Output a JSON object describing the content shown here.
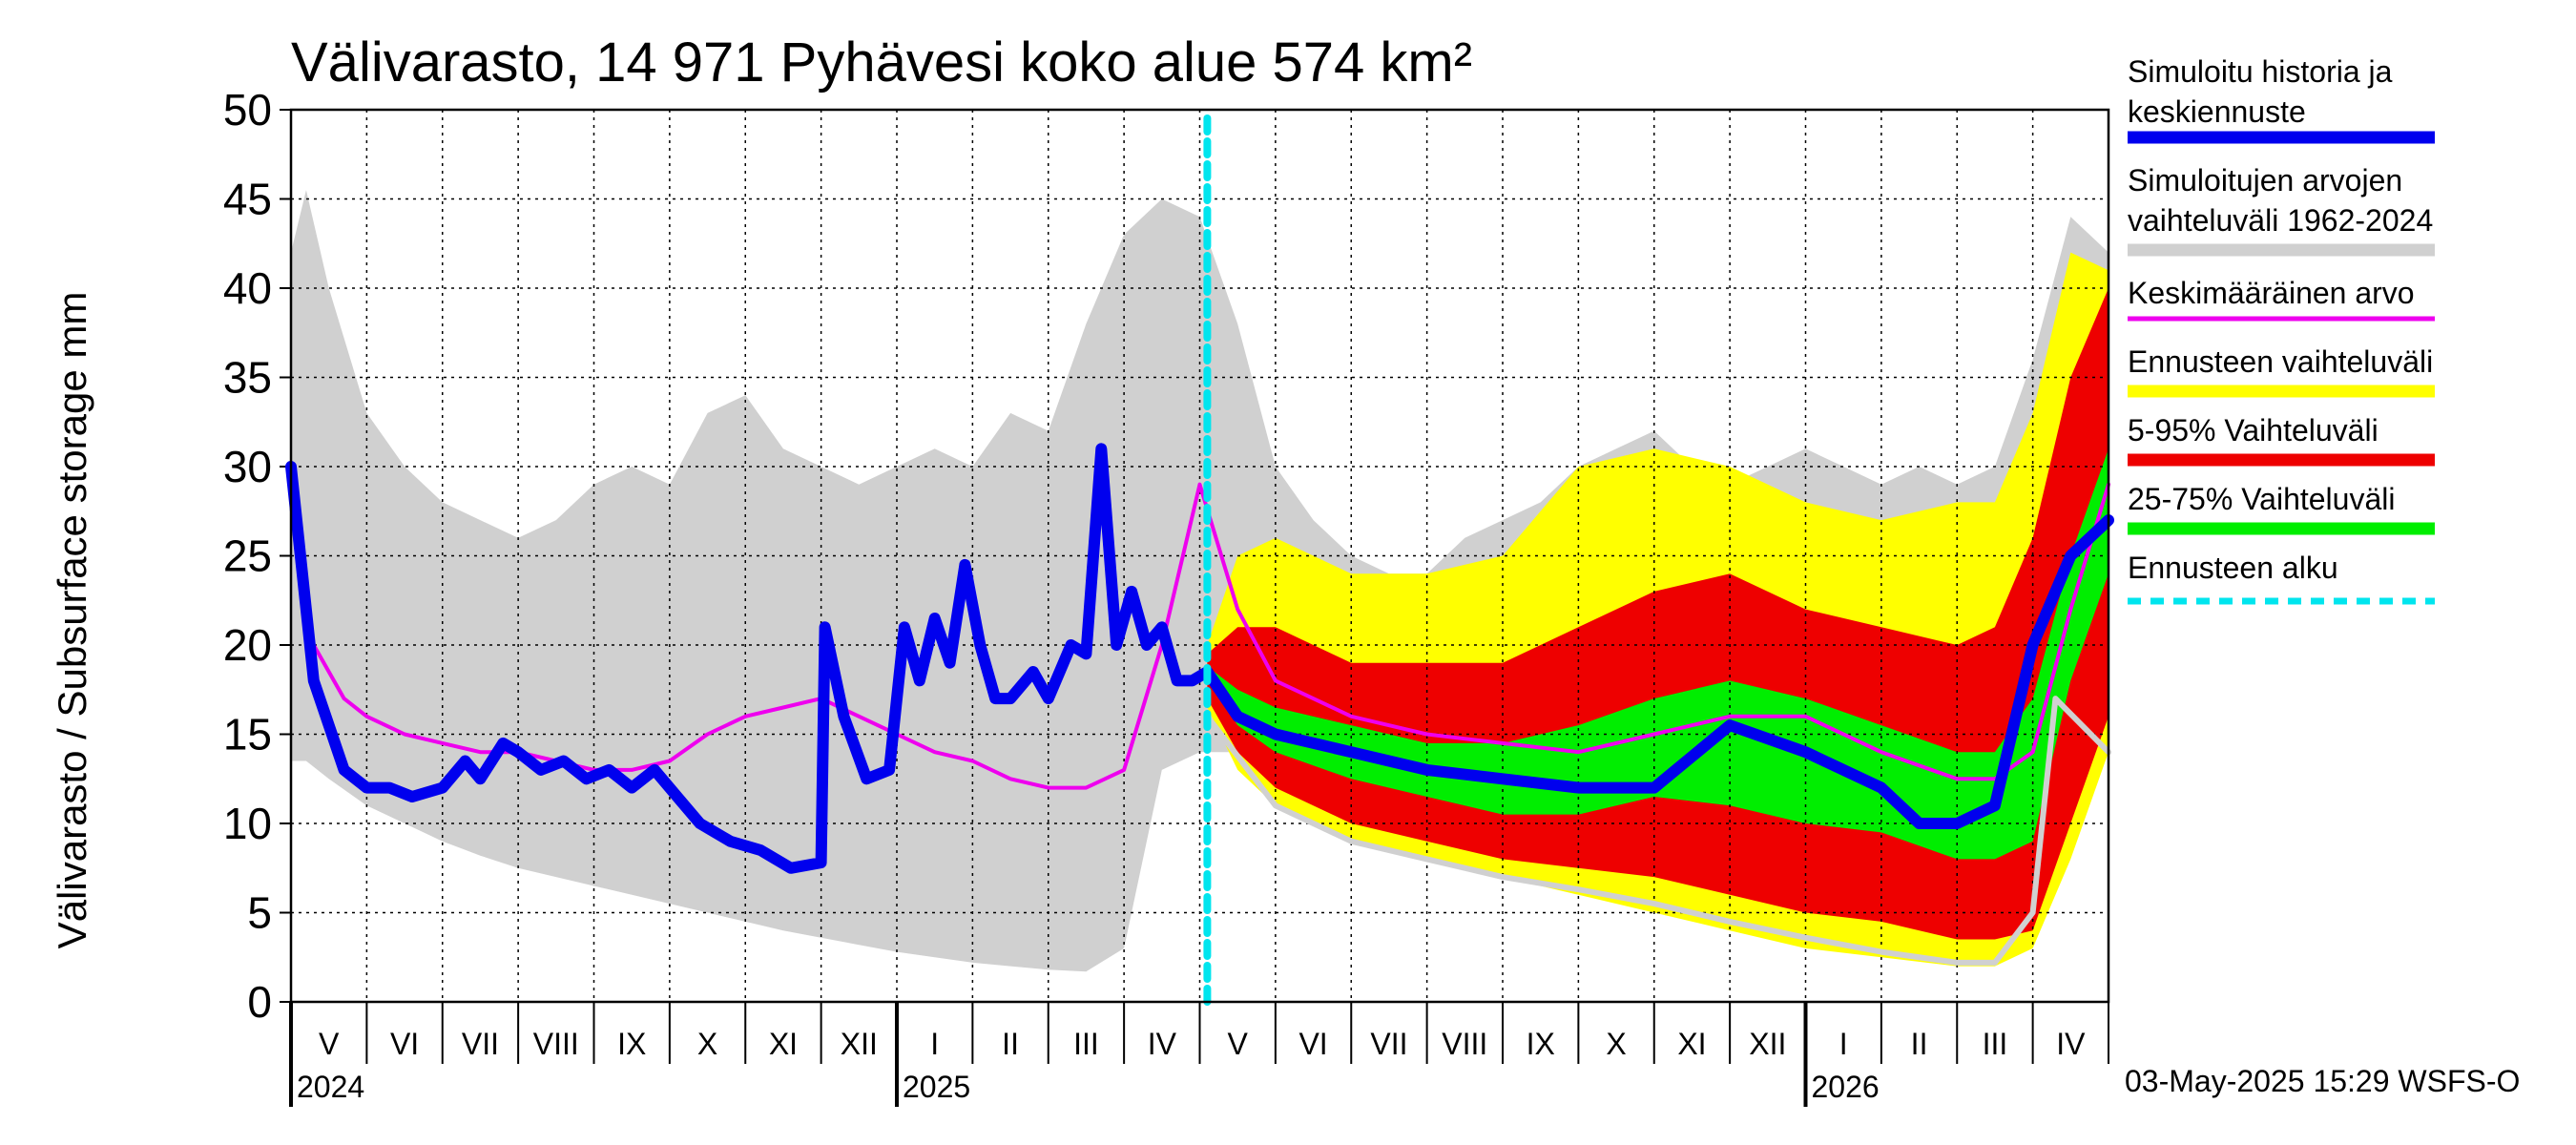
{
  "chart_data": {
    "type": "area",
    "title": "Välivarasto, 14 971 Pyhävesi koko alue 574 km²",
    "ylabel": "Välivarasto / Subsurface storage  mm",
    "ylim": [
      0,
      50
    ],
    "yticks": [
      "0",
      "5",
      "10",
      "15",
      "20",
      "25",
      "30",
      "35",
      "40",
      "45",
      "50"
    ],
    "grid": true,
    "x_unit": "months since start of May 2024",
    "xlim": [
      0,
      24
    ],
    "months": [
      "V",
      "VI",
      "VII",
      "VIII",
      "IX",
      "X",
      "XI",
      "XII",
      "I",
      "II",
      "III",
      "IV",
      "V",
      "VI",
      "VII",
      "VIII",
      "IX",
      "X",
      "XI",
      "XII",
      "I",
      "II",
      "III",
      "IV"
    ],
    "years": [
      {
        "label": "2024",
        "at": 0
      },
      {
        "label": "2025",
        "at": 8
      },
      {
        "label": "2026",
        "at": 20
      }
    ],
    "forecast_start": 12.1,
    "history_range": {
      "x": [
        0,
        0.2,
        0.5,
        1,
        1.5,
        2,
        2.5,
        3,
        3.5,
        4,
        4.5,
        5,
        5.5,
        6,
        6.5,
        7,
        7.5,
        8,
        8.5,
        9,
        9.5,
        10,
        10.5,
        11,
        11.5,
        12,
        12.5,
        13,
        13.5,
        14,
        14.5,
        15,
        15.5,
        16,
        16.5,
        17,
        17.5,
        18,
        18.5,
        19,
        19.5,
        20,
        20.5,
        21,
        21.5,
        22,
        22.5,
        23,
        23.5,
        24
      ],
      "lower": [
        13.5,
        13.5,
        12.5,
        11,
        10,
        9,
        8.2,
        7.5,
        7,
        6.5,
        6,
        5.5,
        5,
        4.5,
        4,
        3.6,
        3.2,
        2.8,
        2.5,
        2.2,
        2,
        1.8,
        1.7,
        3,
        13,
        14,
        14,
        13,
        12,
        11,
        10,
        9.5,
        9,
        8.5,
        8,
        7.5,
        7,
        6.5,
        6,
        5,
        4.5,
        4,
        3.5,
        3.2,
        3,
        2.6,
        2.2,
        4,
        12,
        14
      ],
      "upper": [
        42,
        45.5,
        40,
        33,
        30,
        28,
        27,
        26,
        27,
        29,
        30,
        29,
        33,
        34,
        31,
        30,
        29,
        30,
        31,
        30,
        33,
        32,
        38,
        43,
        45,
        44,
        38,
        30,
        27,
        25,
        24,
        24,
        26,
        27,
        28,
        30,
        31,
        32,
        30,
        29,
        30,
        31,
        30,
        29,
        30,
        29,
        30,
        36,
        44,
        42
      ]
    },
    "forecast_full_range": {
      "x": [
        12.1,
        12.5,
        13,
        14,
        15,
        16,
        17,
        18,
        19,
        20,
        21,
        22,
        22.5,
        23,
        23.5,
        24
      ],
      "lower": [
        16.5,
        13,
        11,
        9,
        8,
        7,
        6,
        5,
        4,
        3,
        2.5,
        2,
        2,
        3,
        8,
        14
      ],
      "upper": [
        20,
        25,
        26,
        24,
        24,
        25,
        30,
        31,
        30,
        28,
        27,
        28,
        28,
        33,
        42,
        41
      ]
    },
    "forecast_5_95": {
      "x": [
        12.1,
        12.5,
        13,
        14,
        15,
        16,
        17,
        18,
        19,
        20,
        21,
        22,
        22.5,
        23,
        23.5,
        24
      ],
      "lower": [
        17,
        14,
        12,
        10,
        9,
        8,
        7.5,
        7,
        6,
        5,
        4.5,
        3.5,
        3.5,
        4,
        10,
        16
      ],
      "upper": [
        19.5,
        21,
        21,
        19,
        19,
        19,
        21,
        23,
        24,
        22,
        21,
        20,
        21,
        26,
        35,
        40
      ]
    },
    "forecast_25_75": {
      "x": [
        12.1,
        12.5,
        13,
        14,
        15,
        16,
        17,
        18,
        19,
        20,
        21,
        22,
        22.5,
        23,
        23.5,
        24
      ],
      "lower": [
        18,
        15.5,
        14,
        12.5,
        11.5,
        10.5,
        10.5,
        11.5,
        11,
        10,
        9.5,
        8,
        8,
        9,
        18,
        24
      ],
      "upper": [
        18.8,
        17.5,
        16.5,
        15.5,
        14.5,
        14.5,
        15.5,
        17,
        18,
        17,
        15.5,
        14,
        14,
        17,
        25,
        31
      ]
    },
    "series": [
      {
        "name": "Simuloitu historia ja keskiennuste",
        "color": "#0000ee",
        "x": [
          0,
          0.3,
          0.7,
          1,
          1.3,
          1.6,
          2,
          2.3,
          2.5,
          2.8,
          3,
          3.3,
          3.6,
          3.9,
          4.2,
          4.5,
          4.8,
          5.1,
          5.4,
          5.8,
          6.2,
          6.6,
          7,
          7.05,
          7.3,
          7.6,
          7.9,
          8.1,
          8.3,
          8.5,
          8.7,
          8.9,
          9.1,
          9.3,
          9.5,
          9.8,
          10,
          10.3,
          10.5,
          10.7,
          10.9,
          11.1,
          11.3,
          11.5,
          11.7,
          11.9,
          12.1,
          12.5,
          13,
          14,
          15,
          16,
          17,
          18,
          19,
          20,
          21,
          21.5,
          22,
          22.5,
          23,
          23.5,
          24
        ],
        "y": [
          30,
          18,
          13,
          12,
          12,
          11.5,
          12,
          13.5,
          12.5,
          14.5,
          14,
          13,
          13.5,
          12.5,
          13,
          12,
          13,
          11.5,
          10,
          9,
          8.5,
          7.5,
          7.8,
          21,
          16,
          12.5,
          13,
          21,
          18,
          21.5,
          19,
          24.5,
          20,
          17,
          17,
          18.5,
          17,
          20,
          19.5,
          31,
          20,
          23,
          20,
          21,
          18,
          18,
          18.5,
          16,
          15,
          14,
          13,
          12.5,
          12,
          12,
          15.5,
          14,
          12,
          10,
          10,
          11,
          20,
          25,
          27
        ]
      },
      {
        "name": "Keskimääräinen arvo",
        "color": "#ee00ee",
        "x": [
          0,
          0.3,
          0.7,
          1,
          1.5,
          2,
          2.5,
          3,
          3.5,
          4,
          4.5,
          5,
          5.5,
          6,
          6.5,
          7,
          7.5,
          8,
          8.5,
          9,
          9.5,
          10,
          10.5,
          11,
          11.5,
          12,
          12.5,
          13,
          14,
          15,
          16,
          17,
          18,
          19,
          20,
          21,
          22,
          22.5,
          23,
          23.5,
          24
        ],
        "y": [
          29,
          20,
          17,
          16,
          15,
          14.5,
          14,
          14,
          13.5,
          13,
          13,
          13.5,
          15,
          16,
          16.5,
          17,
          16,
          15,
          14,
          13.5,
          12.5,
          12,
          12,
          13,
          20,
          29,
          22,
          18,
          16,
          15,
          14.5,
          14,
          15,
          16,
          16,
          14,
          12.5,
          12.5,
          14,
          22,
          29
        ]
      },
      {
        "name": "Ennusteen alku",
        "color": "#00e5ee",
        "x": [
          12.1,
          12.1
        ],
        "y": [
          0,
          50
        ]
      }
    ],
    "forecast_minimum_line": {
      "color": "#d0d0d0",
      "x": [
        12.1,
        13,
        14,
        15,
        16,
        17,
        18,
        19,
        20,
        21,
        22,
        22.5,
        23,
        23.3,
        24
      ],
      "y": [
        16,
        11,
        9,
        8,
        7,
        6.3,
        5.5,
        4.5,
        3.6,
        2.8,
        2.2,
        2.2,
        5,
        17,
        14
      ]
    },
    "legend": [
      {
        "label": "Simuloitu historia ja keskiennuste",
        "color": "#0000ee"
      },
      {
        "label": "Simuloitujen arvojen vaihteluväli 1962-2024",
        "color": "#d0d0d0"
      },
      {
        "label": "Keskimääräinen arvo",
        "color": "#ee00ee"
      },
      {
        "label": "Ennusteen vaihteluväli",
        "color": "#ffff00"
      },
      {
        "label": "5-95% Vaihteluväli",
        "color": "#ee0000"
      },
      {
        "label": "25-75% Vaihteluväli",
        "color": "#00ee00"
      },
      {
        "label": "Ennusteen alku",
        "color": "#00e5ee"
      }
    ],
    "legend_position": "right"
  },
  "legend_text": {
    "l1a": "Simuloitu historia ja",
    "l1b": "keskiennuste",
    "l2a": "Simuloitujen arvojen",
    "l2b": "vaihteluväli 1962-2024",
    "l3": "Keskimääräinen arvo",
    "l4": "Ennusteen vaihteluväli",
    "l5": "5-95% Vaihteluväli",
    "l6": "25-75% Vaihteluväli",
    "l7": "Ennusteen alku"
  },
  "footer": "03-May-2025 15:29 WSFS-O"
}
